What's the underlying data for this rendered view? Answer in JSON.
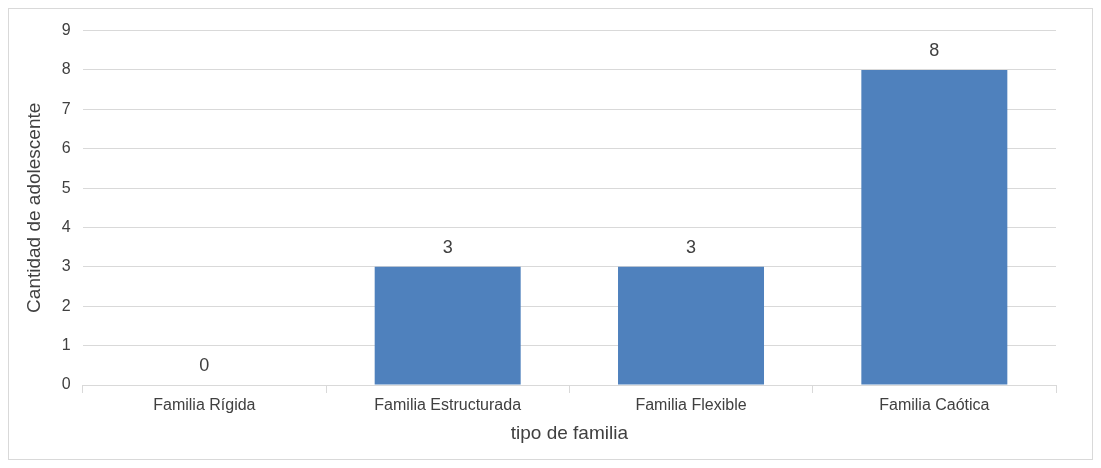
{
  "chart_data": {
    "type": "bar",
    "xlabel": "tipo de familia",
    "ylabel": "Cantidad de adolescente",
    "categories": [
      "Familia Rígida",
      "Familia Estructurada",
      "Familia Flexible",
      "Familia Caótica"
    ],
    "values": [
      0,
      3,
      3,
      8
    ],
    "color": "#4f81bd",
    "ylim": [
      0,
      9
    ],
    "yticks": [
      0,
      1,
      2,
      3,
      4,
      5,
      6,
      7,
      8,
      9
    ],
    "grid": "y",
    "legend": false,
    "data_labels": true
  }
}
